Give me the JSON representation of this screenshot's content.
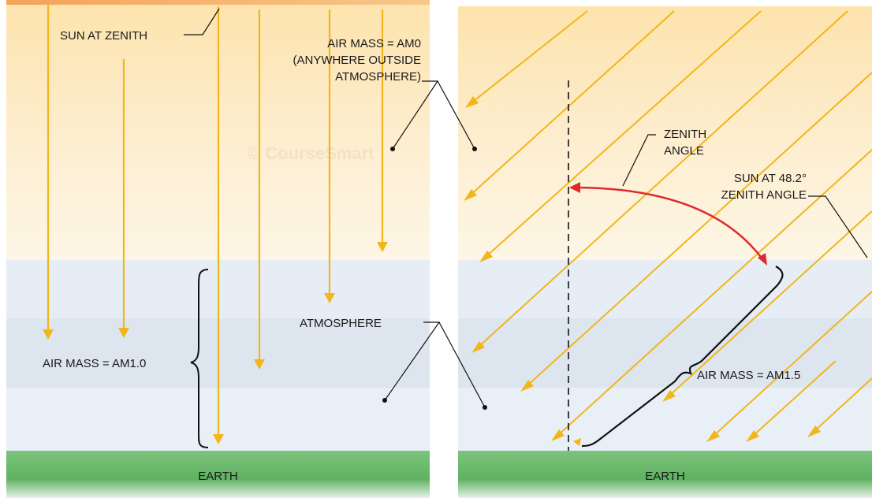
{
  "left_panel": {
    "sun_label": "SUN AT ZENITH",
    "airmass_label": "AIR MASS = AM1.0",
    "earth_label": "EARTH"
  },
  "center": {
    "am0_line1": "AIR MASS = AM0",
    "am0_line2": "(ANYWHERE OUTSIDE",
    "am0_line3": "ATMOSPHERE)",
    "atmosphere_label": "ATMOSPHERE"
  },
  "right_panel": {
    "zenith_line1": "ZENITH",
    "zenith_line2": "ANGLE",
    "sun_line1": "SUN AT 48.2°",
    "sun_line2": "ZENITH ANGLE",
    "airmass_label": "AIR MASS = AM1.5",
    "earth_label": "EARTH"
  },
  "watermark": "© CourseSmart",
  "colors": {
    "sky_top": "#fde7b8",
    "sky_bottom": "#fdf7e8",
    "atmosphere": "#e4ecf4",
    "atmosphere_band": "#d9e4ee",
    "earth_top": "#79c27a",
    "earth_bottom": "#4aa352",
    "sun_ray": "#f2b61a",
    "zenith_arc": "#e0282e",
    "label_text": "#1a1a1a"
  },
  "icons": {
    "ray_arrowhead": "arrow-down-icon",
    "arc_arrowhead": "arrow-icon"
  }
}
